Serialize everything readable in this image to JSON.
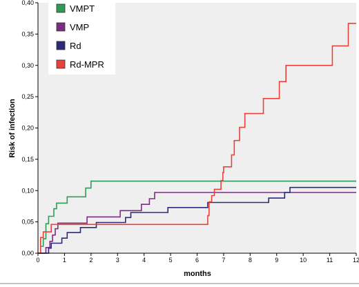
{
  "chart_data": {
    "type": "line",
    "step": true,
    "xlabel": "months",
    "ylabel": "Risk of infection",
    "xlim": [
      0,
      12
    ],
    "ylim": [
      0,
      0.4
    ],
    "x_ticks": [
      0,
      1,
      2,
      3,
      4,
      5,
      6,
      7,
      8,
      9,
      10,
      11,
      12
    ],
    "y_ticks": [
      0.0,
      0.05,
      0.1,
      0.15,
      0.2,
      0.25,
      0.3,
      0.35,
      0.4
    ],
    "y_tick_labels": [
      "0,00",
      "0,05",
      "0,10",
      "0,15",
      "0,20",
      "0,25",
      "0,30",
      "0,35",
      "0,40"
    ],
    "legend_position": "top-left",
    "plot_background": "#efefef",
    "series": [
      {
        "name": "VMPT",
        "color": "#2e9c57",
        "points": [
          [
            0,
            0
          ],
          [
            0.1,
            0.011
          ],
          [
            0.2,
            0.023
          ],
          [
            0.3,
            0.047
          ],
          [
            0.4,
            0.059
          ],
          [
            0.6,
            0.071
          ],
          [
            0.7,
            0.08
          ],
          [
            1.1,
            0.09
          ],
          [
            1.8,
            0.104
          ],
          [
            2.0,
            0.115
          ],
          [
            12,
            0.115
          ]
        ]
      },
      {
        "name": "VMP",
        "color": "#7b2d82",
        "points": [
          [
            0,
            0
          ],
          [
            0.3,
            0.009
          ],
          [
            0.45,
            0.019
          ],
          [
            0.55,
            0.029
          ],
          [
            0.65,
            0.039
          ],
          [
            0.75,
            0.048
          ],
          [
            1.7,
            0.048
          ],
          [
            1.85,
            0.058
          ],
          [
            2.9,
            0.058
          ],
          [
            3.1,
            0.068
          ],
          [
            3.7,
            0.068
          ],
          [
            3.9,
            0.078
          ],
          [
            4.2,
            0.087
          ],
          [
            4.4,
            0.097
          ],
          [
            12,
            0.097
          ]
        ]
      },
      {
        "name": "Rd",
        "color": "#2b2a7a",
        "points": [
          [
            0,
            0
          ],
          [
            0.4,
            0.008
          ],
          [
            0.5,
            0.016
          ],
          [
            0.9,
            0.024
          ],
          [
            1.1,
            0.033
          ],
          [
            1.6,
            0.041
          ],
          [
            2.2,
            0.049
          ],
          [
            3.3,
            0.057
          ],
          [
            3.5,
            0.065
          ],
          [
            4.9,
            0.073
          ],
          [
            6.4,
            0.081
          ],
          [
            8.7,
            0.088
          ],
          [
            9.3,
            0.097
          ],
          [
            9.5,
            0.105
          ],
          [
            12,
            0.105
          ]
        ]
      },
      {
        "name": "Rd-MPR",
        "color": "#e8413a",
        "points": [
          [
            0,
            0
          ],
          [
            0.1,
            0.025
          ],
          [
            0.2,
            0.034
          ],
          [
            0.5,
            0.046
          ],
          [
            2.2,
            0.046
          ],
          [
            6.3,
            0.046
          ],
          [
            6.4,
            0.06
          ],
          [
            6.45,
            0.082
          ],
          [
            6.55,
            0.092
          ],
          [
            6.65,
            0.102
          ],
          [
            6.9,
            0.116
          ],
          [
            6.97,
            0.129
          ],
          [
            7.0,
            0.138
          ],
          [
            7.3,
            0.157
          ],
          [
            7.4,
            0.18
          ],
          [
            7.6,
            0.201
          ],
          [
            7.8,
            0.223
          ],
          [
            8.5,
            0.247
          ],
          [
            9.1,
            0.274
          ],
          [
            9.35,
            0.3
          ],
          [
            11.1,
            0.331
          ],
          [
            11.7,
            0.367
          ],
          [
            12,
            0.367
          ]
        ]
      }
    ]
  }
}
